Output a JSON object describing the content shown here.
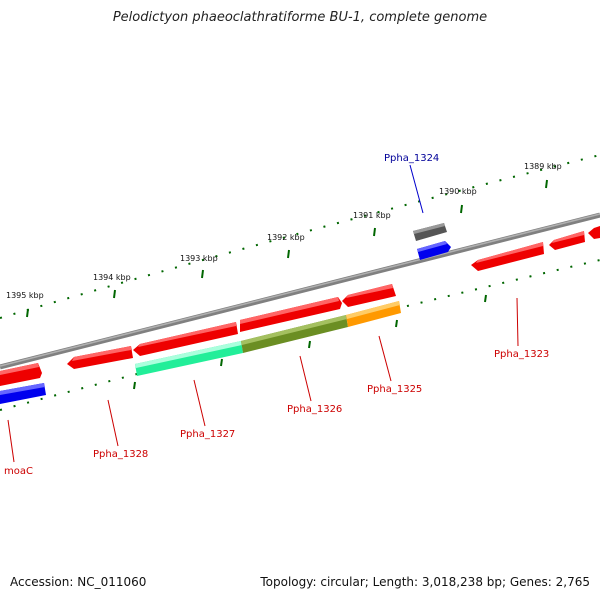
{
  "title": "Pelodictyon phaeoclathratiforme BU-1, complete genome",
  "footer": {
    "accession": "Accession: NC_011060",
    "topology": "Topology: circular; Length: 3,018,238 bp; Genes: 2,765"
  },
  "colors": {
    "backbone": "#808080",
    "forward_gene": "#ee0000",
    "reverse_gene": "#ee0000",
    "rna_gene": "#606060",
    "blue_feature": "#0000ee",
    "green_feature": "#22ee99",
    "olive_feature": "#6b8e23",
    "orange_feature": "#ff9900",
    "tick": "#006600",
    "label_red": "#cc0000",
    "label_blue": "#000099"
  },
  "scale_labels": [
    "1395 kbp",
    "1394 kbp",
    "1393 kbp",
    "1392 kbp",
    "1391 kbp",
    "1390 kbp",
    "1389 kbp"
  ],
  "gene_labels": [
    "moaC",
    "Ppha_1328",
    "Ppha_1327",
    "Ppha_1326",
    "Ppha_1325",
    "Ppha_1323",
    "Ppha_1324"
  ]
}
